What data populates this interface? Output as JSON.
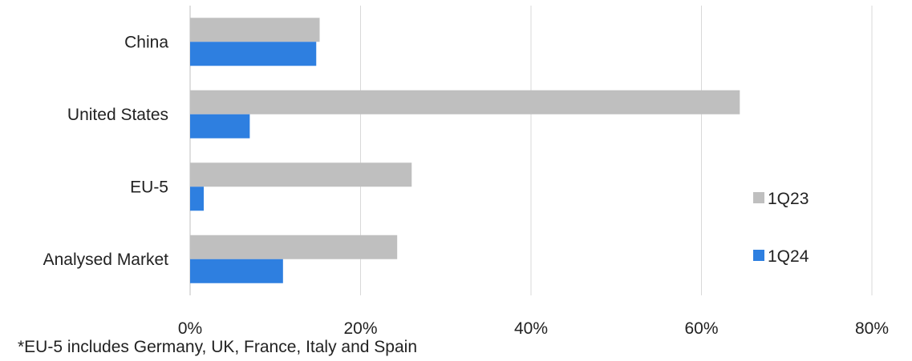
{
  "chart_data": {
    "type": "bar",
    "orientation": "horizontal",
    "title": "",
    "xlabel": "",
    "ylabel": "",
    "categories": [
      "China",
      "United States",
      "EU-5",
      "Analysed Market"
    ],
    "series": [
      {
        "name": "1Q23",
        "color": "#bfbfbf",
        "values": [
          15.2,
          64.5,
          26.0,
          24.3
        ]
      },
      {
        "name": "1Q24",
        "color": "#2e7fe0",
        "values": [
          14.8,
          7.0,
          1.6,
          10.9
        ]
      }
    ],
    "xlim": [
      0,
      80
    ],
    "xticks": [
      0,
      20,
      40,
      60,
      80
    ],
    "tick_format": "{v}%",
    "grid": "vertical",
    "legend_position": "right"
  },
  "footnote": "*EU-5 includes Germany, UK, France, Italy and Spain"
}
